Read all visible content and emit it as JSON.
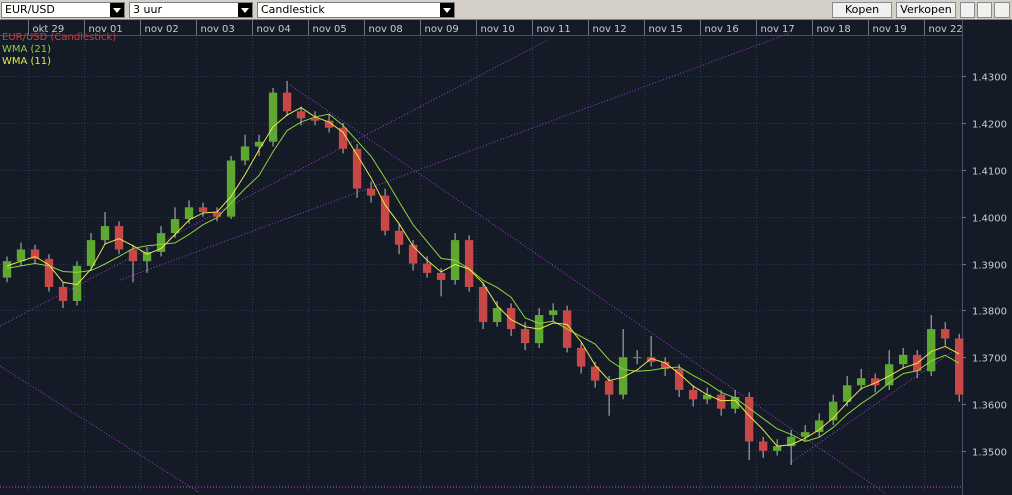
{
  "toolbar": {
    "symbol": "EUR/USD",
    "interval": "3 uur",
    "chart_type": "Candlestick",
    "buy": "Kopen",
    "sell": "Verkopen"
  },
  "chart_data": {
    "type": "candlestick",
    "xlim": [
      0,
      68.7
    ],
    "xticks": [
      {
        "value": 2,
        "label": "okt 29"
      },
      {
        "value": 6,
        "label": "nov 01"
      },
      {
        "value": 10,
        "label": "nov 02"
      },
      {
        "value": 14,
        "label": "nov 03"
      },
      {
        "value": 18,
        "label": "nov 04"
      },
      {
        "value": 22,
        "label": "nov 05"
      },
      {
        "value": 26,
        "label": "nov 08"
      },
      {
        "value": 30,
        "label": "nov 09"
      },
      {
        "value": 34,
        "label": "nov 10"
      },
      {
        "value": 38,
        "label": "nov 11"
      },
      {
        "value": 42,
        "label": "nov 12"
      },
      {
        "value": 46,
        "label": "nov 15"
      },
      {
        "value": 50,
        "label": "nov 16"
      },
      {
        "value": 54,
        "label": "nov 17"
      },
      {
        "value": 58,
        "label": "nov 18"
      },
      {
        "value": 62,
        "label": "nov 19"
      },
      {
        "value": 66,
        "label": "nov 22"
      }
    ],
    "ylim": [
      1.341,
      1.442
    ],
    "yticks": [
      {
        "value": 1.35,
        "label": "1.3500"
      },
      {
        "value": 1.36,
        "label": "1.3600"
      },
      {
        "value": 1.37,
        "label": "1.3700"
      },
      {
        "value": 1.38,
        "label": "1.3800"
      },
      {
        "value": 1.39,
        "label": "1.3900"
      },
      {
        "value": 1.4,
        "label": "1.4000"
      },
      {
        "value": 1.41,
        "label": "1.4100"
      },
      {
        "value": 1.42,
        "label": "1.4200"
      },
      {
        "value": 1.43,
        "label": "1.4300"
      }
    ],
    "grid": true,
    "series": [
      {
        "name": "EUR/USD (Candlestick)",
        "color": "#d04040",
        "color_up": "#5ea832",
        "color_down": "#c84848",
        "open": [
          1.387,
          1.3905,
          1.393,
          1.391,
          1.385,
          1.382,
          1.3895,
          1.395,
          1.398,
          1.393,
          1.3905,
          1.3925,
          1.3965,
          1.3995,
          1.402,
          1.401,
          1.4,
          1.412,
          1.415,
          1.416,
          1.4265,
          1.4225,
          1.421,
          1.4205,
          1.419,
          1.4145,
          1.406,
          1.4045,
          1.397,
          1.394,
          1.39,
          1.388,
          1.3865,
          1.395,
          1.385,
          1.3775,
          1.3805,
          1.376,
          1.373,
          1.379,
          1.38,
          1.372,
          1.368,
          1.365,
          1.362,
          1.37,
          1.37,
          1.369,
          1.3675,
          1.363,
          1.361,
          1.362,
          1.359,
          1.3615,
          1.352,
          1.35,
          1.351,
          1.353,
          1.354,
          1.3565,
          1.3605,
          1.364,
          1.3655,
          1.364,
          1.3685,
          1.3705,
          1.367,
          1.376,
          1.374
        ],
        "high": [
          1.3915,
          1.3945,
          1.394,
          1.392,
          1.386,
          1.3905,
          1.3965,
          1.401,
          1.399,
          1.394,
          1.3935,
          1.398,
          1.402,
          1.4035,
          1.403,
          1.402,
          1.413,
          1.4175,
          1.4175,
          1.4275,
          1.429,
          1.4235,
          1.4225,
          1.422,
          1.42,
          1.4155,
          1.4075,
          1.406,
          1.3985,
          1.395,
          1.3915,
          1.389,
          1.3965,
          1.396,
          1.386,
          1.382,
          1.3815,
          1.3775,
          1.3805,
          1.3815,
          1.381,
          1.373,
          1.369,
          1.366,
          1.376,
          1.3715,
          1.3745,
          1.37,
          1.3685,
          1.364,
          1.3635,
          1.363,
          1.363,
          1.3625,
          1.353,
          1.3525,
          1.3545,
          1.3555,
          1.358,
          1.362,
          1.366,
          1.3675,
          1.3665,
          1.3715,
          1.372,
          1.3715,
          1.379,
          1.3775,
          1.375
        ],
        "low": [
          1.386,
          1.3895,
          1.39,
          1.384,
          1.3805,
          1.381,
          1.3885,
          1.394,
          1.392,
          1.386,
          1.388,
          1.3915,
          1.3955,
          1.3985,
          1.4,
          1.399,
          1.3995,
          1.411,
          1.413,
          1.415,
          1.4215,
          1.4195,
          1.4195,
          1.418,
          1.4135,
          1.404,
          1.403,
          1.396,
          1.392,
          1.3885,
          1.387,
          1.383,
          1.3855,
          1.384,
          1.376,
          1.3765,
          1.3745,
          1.3715,
          1.372,
          1.3775,
          1.371,
          1.3665,
          1.3635,
          1.3575,
          1.361,
          1.3685,
          1.368,
          1.366,
          1.3615,
          1.3595,
          1.36,
          1.3575,
          1.358,
          1.348,
          1.3485,
          1.349,
          1.347,
          1.352,
          1.353,
          1.3555,
          1.3595,
          1.363,
          1.3625,
          1.363,
          1.3675,
          1.3655,
          1.366,
          1.3725,
          1.3605
        ],
        "close": [
          1.3905,
          1.393,
          1.391,
          1.385,
          1.382,
          1.3895,
          1.395,
          1.398,
          1.393,
          1.3905,
          1.3925,
          1.3965,
          1.3995,
          1.402,
          1.401,
          1.4,
          1.412,
          1.415,
          1.416,
          1.4265,
          1.4225,
          1.421,
          1.4205,
          1.419,
          1.4145,
          1.406,
          1.4045,
          1.397,
          1.394,
          1.39,
          1.388,
          1.3865,
          1.395,
          1.385,
          1.3775,
          1.3805,
          1.376,
          1.373,
          1.379,
          1.38,
          1.372,
          1.368,
          1.365,
          1.362,
          1.37,
          1.37,
          1.369,
          1.3675,
          1.363,
          1.361,
          1.362,
          1.359,
          1.3615,
          1.352,
          1.35,
          1.351,
          1.353,
          1.354,
          1.3565,
          1.3605,
          1.364,
          1.3655,
          1.364,
          1.3685,
          1.3705,
          1.367,
          1.376,
          1.374,
          1.362
        ]
      },
      {
        "name": "WMA (21)",
        "color": "#8fd43c",
        "values": [
          1.389,
          1.3895,
          1.39,
          1.3895,
          1.3883,
          1.3881,
          1.3885,
          1.3899,
          1.3915,
          1.3932,
          1.3938,
          1.3941,
          1.3944,
          1.3962,
          1.3983,
          1.3998,
          1.4029,
          1.406,
          1.4088,
          1.4139,
          1.4184,
          1.4202,
          1.4213,
          1.4219,
          1.4195,
          1.4162,
          1.4129,
          1.4082,
          1.4032,
          1.3983,
          1.3947,
          1.3911,
          1.3907,
          1.3889,
          1.3864,
          1.3849,
          1.3828,
          1.3784,
          1.3772,
          1.3777,
          1.376,
          1.3744,
          1.3728,
          1.3694,
          1.3674,
          1.367,
          1.3672,
          1.3677,
          1.3679,
          1.3661,
          1.3645,
          1.3625,
          1.3613,
          1.3591,
          1.3569,
          1.3547,
          1.3535,
          1.352,
          1.3529,
          1.355,
          1.3578,
          1.3601,
          1.3621,
          1.3645,
          1.3665,
          1.3671,
          1.3692,
          1.3704,
          1.3687
        ]
      },
      {
        "name": "WMA (11)",
        "color": "#e8e84a",
        "values": [
          1.3895,
          1.3905,
          1.3915,
          1.3897,
          1.386,
          1.3855,
          1.3888,
          1.3942,
          1.3953,
          1.3938,
          1.392,
          1.3932,
          1.3962,
          1.3993,
          1.4008,
          1.401,
          1.4043,
          1.409,
          1.4143,
          1.4192,
          1.4217,
          1.4233,
          1.4213,
          1.4202,
          1.418,
          1.4132,
          1.4083,
          1.4025,
          1.3985,
          1.3937,
          1.3907,
          1.3882,
          1.3898,
          1.3888,
          1.3858,
          1.381,
          1.378,
          1.3765,
          1.376,
          1.3773,
          1.377,
          1.3733,
          1.3683,
          1.365,
          1.3657,
          1.3673,
          1.3697,
          1.3688,
          1.3665,
          1.3638,
          1.362,
          1.3607,
          1.3608,
          1.3575,
          1.3545,
          1.351,
          1.3513,
          1.3527,
          1.3545,
          1.357,
          1.3603,
          1.3633,
          1.3645,
          1.366,
          1.3677,
          1.3687,
          1.3712,
          1.3723,
          1.3707
        ]
      }
    ]
  }
}
